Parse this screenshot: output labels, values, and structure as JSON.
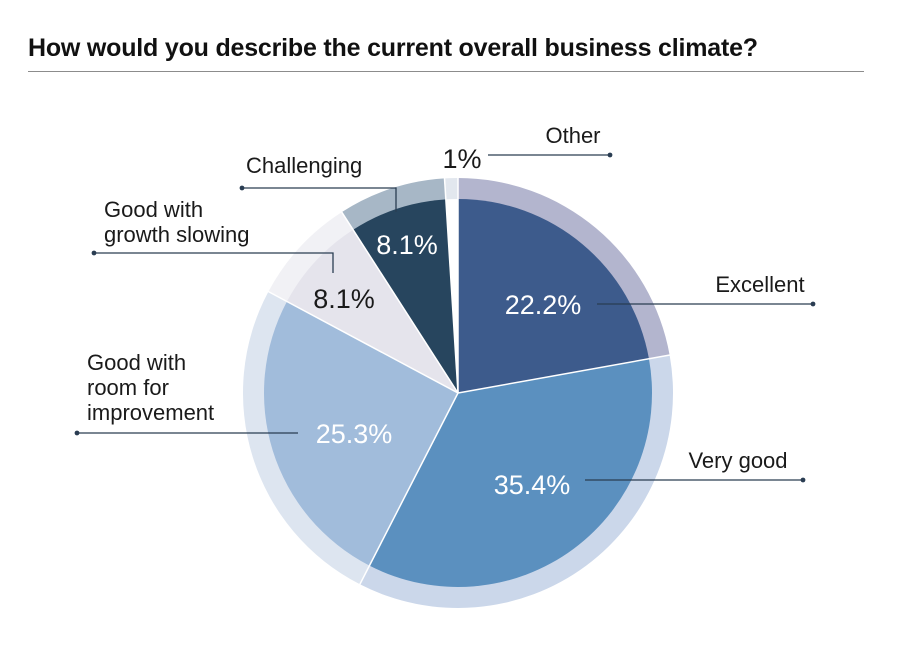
{
  "title": "How would you describe the current overall business climate?",
  "chart_data": {
    "type": "pie",
    "title": "How would you describe the current overall business climate?",
    "unit": "%",
    "slices": [
      {
        "label": "Excellent",
        "value": 22.2,
        "display": "22.2%",
        "color": "#3d5b8c",
        "text_color": "#ffffff"
      },
      {
        "label": "Very good",
        "value": 35.4,
        "display": "35.4%",
        "color": "#5b90bf",
        "text_color": "#ffffff"
      },
      {
        "label": "Good with room for improvement",
        "value": 25.3,
        "display": "25.3%",
        "color": "#a1bcdb",
        "text_color": "#ffffff"
      },
      {
        "label": "Good with growth slowing",
        "value": 8.1,
        "display": "8.1%",
        "color": "#e5e4ec",
        "text_color": "#1a1a1a"
      },
      {
        "label": "Challenging",
        "value": 8.1,
        "display": "8.1%",
        "color": "#27455e",
        "text_color": "#ffffff"
      },
      {
        "label": "Other",
        "value": 1.0,
        "display": "1%",
        "color": "#ffffff",
        "text_color": "#1a1a1a"
      }
    ],
    "label_lines": {
      "Excellent": [
        "Excellent"
      ],
      "Very good": [
        "Very good"
      ],
      "Good with room for improvement": [
        "Good with",
        "room for",
        "improvement"
      ],
      "Good with growth slowing": [
        "Good with",
        "growth slowing"
      ],
      "Challenging": [
        "Challenging"
      ],
      "Other": [
        "Other"
      ]
    },
    "legend": "none",
    "start_angle": "12 o'clock, clockwise"
  }
}
